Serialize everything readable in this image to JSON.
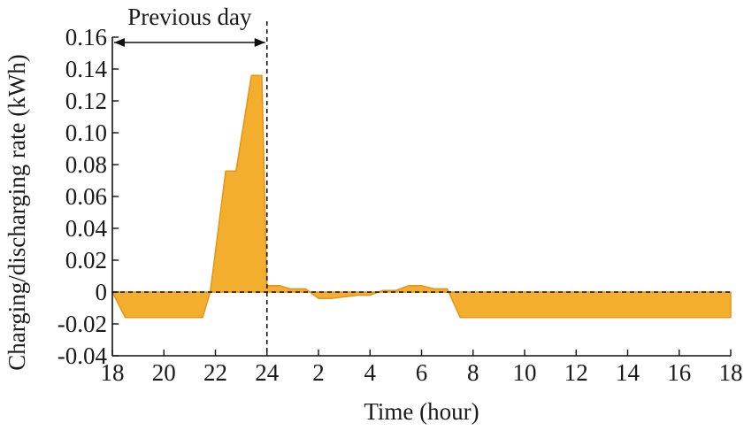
{
  "chart_data": {
    "type": "area",
    "title": "",
    "xlabel": "Time (hour)",
    "ylabel": "Charging/discharging rate (kWh)",
    "ylim": [
      -0.04,
      0.16
    ],
    "yticks": [
      "-0.04",
      "-0.02",
      "0",
      "0.02",
      "0.04",
      "0.06",
      "0.08",
      "0.10",
      "0.12",
      "0.14",
      "0.16"
    ],
    "xlim": [
      0,
      24
    ],
    "xticks": [
      "18",
      "20",
      "22",
      "24",
      "2",
      "4",
      "6",
      "8",
      "10",
      "12",
      "14",
      "16",
      "18"
    ],
    "grid": false,
    "annotation": {
      "text": "Previous day",
      "from_hour": 18,
      "to_hour": 24
    },
    "series": [
      {
        "values_x_hours_since_18": [
          0,
          0.5,
          3.5,
          3.8,
          4.4,
          4.8,
          5.4,
          5.8,
          6.0,
          6.5,
          6.9,
          7.5,
          8.0,
          8.5,
          9.5,
          10.0,
          10.5,
          11.0,
          11.5,
          12.0,
          12.5,
          13.0,
          13.5,
          14.0,
          14.5,
          24.0
        ],
        "values_y_kwh": [
          0,
          -0.016,
          -0.016,
          0,
          0.076,
          0.076,
          0.136,
          0.136,
          0.004,
          0.004,
          0.002,
          0.002,
          -0.004,
          -0.004,
          -0.002,
          -0.002,
          0.001,
          0.001,
          0.004,
          0.004,
          0.002,
          0.002,
          -0.016,
          -0.016,
          -0.016,
          -0.016
        ],
        "color": "#f2ae2c",
        "stroke": "#e6931a"
      }
    ]
  }
}
